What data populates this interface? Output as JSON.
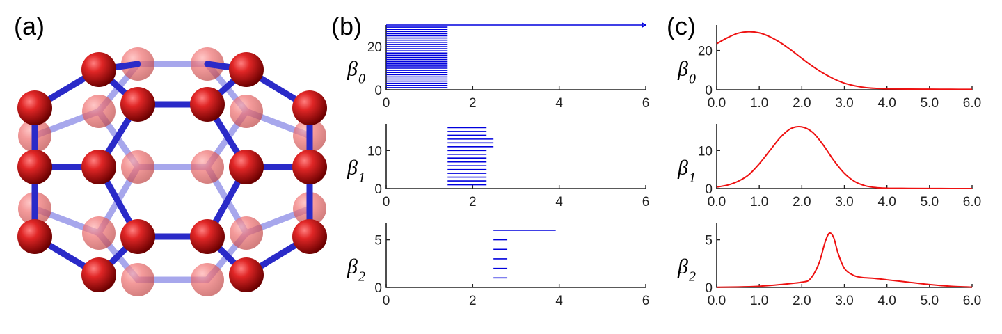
{
  "panel_labels": [
    "(a)",
    "(b)",
    "(c)"
  ],
  "molecule": {
    "atom_color": "#d41c1c",
    "bond_color": "#3333cc"
  },
  "chart_data": [
    {
      "type": "barcode",
      "panel": "(b)",
      "ylabel": "β",
      "ylabel_sub": "0",
      "xlim": [
        0,
        6
      ],
      "ylim": [
        0,
        30
      ],
      "xticks": [
        0,
        2,
        4,
        6
      ],
      "yticks": [
        0,
        20
      ],
      "color": "#0000dd",
      "bars": [
        {
          "start": 0,
          "end": 1.42,
          "count": 29
        },
        {
          "start": 0,
          "end": 6,
          "count": 1,
          "infinite": true
        }
      ]
    },
    {
      "type": "barcode",
      "panel": "(b)",
      "ylabel": "β",
      "ylabel_sub": "1",
      "xlim": [
        0,
        6
      ],
      "ylim": [
        0,
        17
      ],
      "xticks": [
        0,
        2,
        4,
        6
      ],
      "yticks": [
        0,
        10
      ],
      "color": "#0000dd",
      "bars": [
        {
          "start": 1.42,
          "end": 2.32,
          "count": 10
        },
        {
          "start": 1.42,
          "end": 2.48,
          "count": 3
        },
        {
          "start": 1.42,
          "end": 2.32,
          "count": 3
        }
      ]
    },
    {
      "type": "barcode",
      "panel": "(b)",
      "ylabel": "β",
      "ylabel_sub": "2",
      "xlim": [
        0,
        6
      ],
      "ylim": [
        0,
        6.8
      ],
      "xticks": [
        0,
        2,
        4,
        6
      ],
      "yticks": [
        0,
        5
      ],
      "color": "#0000dd",
      "bars": [
        {
          "start": 2.48,
          "end": 2.8,
          "count": 5
        },
        {
          "start": 2.48,
          "end": 3.92,
          "count": 1
        }
      ]
    },
    {
      "type": "line",
      "panel": "(c)",
      "ylabel": "β",
      "ylabel_sub": "0",
      "xlim": [
        0,
        6
      ],
      "ylim": [
        0,
        33
      ],
      "xticks": [
        "0.0",
        "1.0",
        "2.0",
        "3.0",
        "4.0",
        "5.0",
        "6.0"
      ],
      "yticks": [
        0,
        20
      ],
      "color": "#ee1111",
      "x": [
        0,
        0.25,
        0.5,
        0.75,
        1.0,
        1.25,
        1.5,
        1.75,
        2.0,
        2.25,
        2.5,
        2.75,
        3.0,
        3.25,
        3.5,
        3.75,
        4.0,
        4.5,
        5.0,
        5.5,
        6.0
      ],
      "y": [
        23.5,
        26.5,
        28.8,
        29.6,
        29.0,
        27.0,
        24.0,
        20.2,
        16.0,
        12.0,
        8.5,
        5.6,
        3.4,
        2.0,
        1.1,
        0.7,
        0.5,
        0.35,
        0.3,
        0.25,
        0.2
      ]
    },
    {
      "type": "line",
      "panel": "(c)",
      "ylabel": "β",
      "ylabel_sub": "1",
      "xlim": [
        0,
        6
      ],
      "ylim": [
        0,
        17
      ],
      "xticks": [
        "0.0",
        "1.0",
        "2.0",
        "3.0",
        "4.0",
        "5.0",
        "6.0"
      ],
      "yticks": [
        0,
        10
      ],
      "color": "#ee1111",
      "x": [
        0,
        0.25,
        0.5,
        0.75,
        1.0,
        1.25,
        1.5,
        1.75,
        2.0,
        2.25,
        2.5,
        2.75,
        3.0,
        3.25,
        3.5,
        3.75,
        4.0,
        4.5,
        5.0,
        5.5,
        6.0
      ],
      "y": [
        0.4,
        0.9,
        1.9,
        3.6,
        6.5,
        10.0,
        13.5,
        15.8,
        16.2,
        14.8,
        11.5,
        7.4,
        4.0,
        1.8,
        0.7,
        0.25,
        0.1,
        0.05,
        0.02,
        0.01,
        0.0
      ]
    },
    {
      "type": "line",
      "panel": "(c)",
      "ylabel": "β",
      "ylabel_sub": "2",
      "xlim": [
        0,
        6
      ],
      "ylim": [
        0,
        6.8
      ],
      "xticks": [
        "0.0",
        "1.0",
        "2.0",
        "3.0",
        "4.0",
        "5.0",
        "6.0"
      ],
      "yticks": [
        0,
        5
      ],
      "color": "#ee1111",
      "x": [
        0,
        0.5,
        1.0,
        1.5,
        2.0,
        2.2,
        2.4,
        2.55,
        2.65,
        2.75,
        2.85,
        3.0,
        3.2,
        3.4,
        3.7,
        4.0,
        4.5,
        5.0,
        5.5,
        6.0
      ],
      "y": [
        0.02,
        0.05,
        0.12,
        0.3,
        0.55,
        0.9,
        2.5,
        4.8,
        5.7,
        5.2,
        3.6,
        2.0,
        1.3,
        1.05,
        0.95,
        0.8,
        0.55,
        0.3,
        0.12,
        0.03
      ]
    }
  ]
}
